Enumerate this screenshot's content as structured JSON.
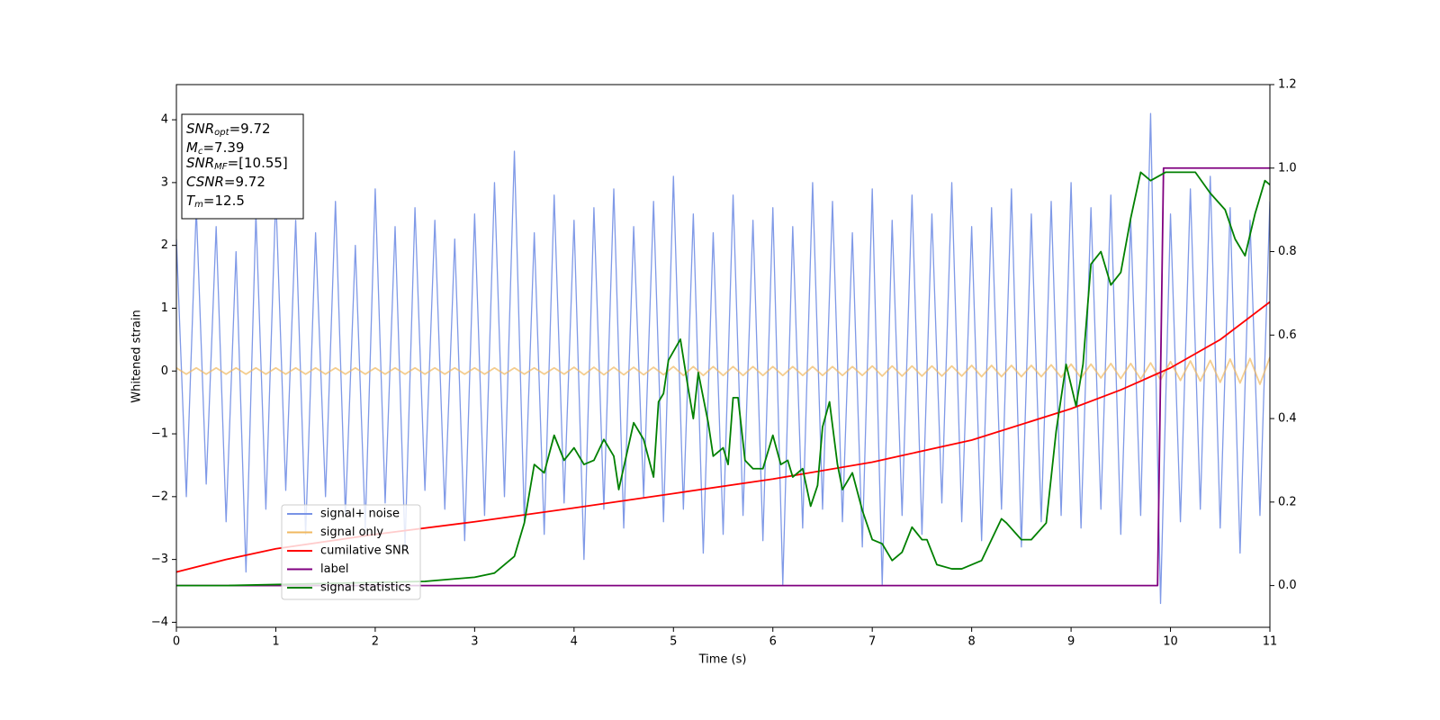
{
  "chart_data": {
    "type": "line",
    "xlabel": "Time (s)",
    "ylabel": "Whitened strain",
    "xlim": [
      0,
      11
    ],
    "xticks": [
      0,
      1,
      2,
      3,
      4,
      5,
      6,
      7,
      8,
      9,
      10,
      11
    ],
    "ylim": [
      -4.08,
      4.56
    ],
    "yticks": [
      {
        "value": -4,
        "label": "−4"
      },
      {
        "value": -3,
        "label": "−3"
      },
      {
        "value": -2,
        "label": "−2"
      },
      {
        "value": -1,
        "label": "−1"
      },
      0,
      1,
      2,
      3,
      4
    ],
    "y2lim": [
      -0.1,
      1.2
    ],
    "y2ticks": [
      {
        "value": 0,
        "label": "0.0"
      },
      0.2,
      0.4,
      0.6,
      0.8,
      {
        "value": 1,
        "label": "1.0"
      },
      1.2
    ],
    "legend": "lower left",
    "annotations": [
      {
        "symbol": "SNR",
        "subscript": "opt",
        "text": "=9.72"
      },
      {
        "symbol": "M",
        "subscript": "c",
        "text": "=7.39"
      },
      {
        "symbol": "SNR",
        "subscript": "MF",
        "text": "=[10.55]"
      },
      {
        "symbol": "CSNR",
        "text": "=9.72"
      },
      {
        "symbol": "T",
        "subscript": "m",
        "text": "=12.5"
      }
    ],
    "x": [
      0,
      0.1,
      0.2,
      0.3,
      0.4,
      0.5,
      0.6,
      0.7,
      0.8,
      0.9,
      1,
      1.1,
      1.2,
      1.3,
      1.4,
      1.5,
      1.6,
      1.7,
      1.8,
      1.9,
      2,
      2.1,
      2.2,
      2.3,
      2.4,
      2.5,
      2.6,
      2.7,
      2.8,
      2.9,
      3,
      3.1,
      3.2,
      3.3,
      3.4,
      3.5,
      3.6,
      3.7,
      3.8,
      3.9,
      4,
      4.1,
      4.2,
      4.3,
      4.4,
      4.5,
      4.6,
      4.7,
      4.8,
      4.9,
      5,
      5.1,
      5.2,
      5.3,
      5.4,
      5.5,
      5.6,
      5.7,
      5.8,
      5.9,
      6,
      6.1,
      6.2,
      6.3,
      6.4,
      6.5,
      6.6,
      6.7,
      6.8,
      6.9,
      7,
      7.1,
      7.2,
      7.3,
      7.4,
      7.5,
      7.6,
      7.7,
      7.8,
      7.9,
      8,
      8.1,
      8.2,
      8.3,
      8.4,
      8.5,
      8.6,
      8.7,
      8.8,
      8.9,
      9,
      9.1,
      9.2,
      9.3,
      9.4,
      9.5,
      9.6,
      9.7,
      9.8,
      9.9,
      10,
      10.1,
      10.2,
      10.3,
      10.4,
      10.5,
      10.6,
      10.7,
      10.8,
      10.9,
      11
    ],
    "series": [
      {
        "name": "signal+ noise",
        "color": "#7893e6",
        "values": [
          2.1,
          -2.0,
          2.6,
          -1.8,
          2.3,
          -2.4,
          1.9,
          -3.2,
          2.5,
          -2.2,
          2.8,
          -1.9,
          2.4,
          -2.6,
          2.2,
          -2.0,
          2.7,
          -2.3,
          2.0,
          -2.5,
          2.9,
          -2.1,
          2.3,
          -2.8,
          2.6,
          -1.9,
          2.4,
          -2.2,
          2.1,
          -2.7,
          2.5,
          -2.3,
          3.0,
          -2.0,
          3.5,
          -2.4,
          2.2,
          -2.6,
          2.8,
          -2.1,
          2.4,
          -3.0,
          2.6,
          -2.2,
          2.9,
          -2.5,
          2.3,
          -2.0,
          2.7,
          -2.4,
          3.1,
          -2.2,
          2.5,
          -2.9,
          2.2,
          -2.6,
          2.8,
          -2.3,
          2.4,
          -2.7,
          2.6,
          -3.4,
          2.3,
          -2.5,
          3.0,
          -2.2,
          2.7,
          -2.4,
          2.2,
          -2.8,
          2.9,
          -3.4,
          2.4,
          -2.3,
          2.8,
          -2.6,
          2.5,
          -2.1,
          3.0,
          -2.4,
          2.3,
          -2.7,
          2.6,
          -2.2,
          2.9,
          -2.8,
          2.5,
          -2.4,
          2.7,
          -2.3,
          3.0,
          -2.5,
          2.6,
          -2.2,
          2.8,
          -2.6,
          2.4,
          -2.3,
          4.1,
          -3.7,
          2.5,
          -2.4,
          2.9,
          -2.2,
          3.1,
          -2.5,
          2.6,
          -2.9,
          2.4,
          -2.3,
          2.7
        ]
      },
      {
        "name": "signal only",
        "color": "#f0b860",
        "values": [
          0.05,
          -0.05,
          0.05,
          -0.05,
          0.05,
          -0.05,
          0.05,
          -0.05,
          0.05,
          -0.05,
          0.05,
          -0.05,
          0.05,
          -0.05,
          0.05,
          -0.05,
          0.05,
          -0.05,
          0.05,
          -0.05,
          0.05,
          -0.05,
          0.05,
          -0.05,
          0.05,
          -0.05,
          0.05,
          -0.05,
          0.05,
          -0.05,
          0.05,
          -0.05,
          0.05,
          -0.05,
          0.05,
          -0.05,
          0.05,
          -0.05,
          0.05,
          -0.05,
          0.06,
          -0.06,
          0.06,
          -0.06,
          0.06,
          -0.06,
          0.06,
          -0.06,
          0.06,
          -0.06,
          0.07,
          -0.07,
          0.07,
          -0.07,
          0.07,
          -0.07,
          0.07,
          -0.07,
          0.07,
          -0.07,
          0.07,
          -0.07,
          0.07,
          -0.07,
          0.07,
          -0.07,
          0.07,
          -0.07,
          0.07,
          -0.07,
          0.08,
          -0.08,
          0.08,
          -0.08,
          0.08,
          -0.08,
          0.08,
          -0.08,
          0.08,
          -0.08,
          0.09,
          -0.09,
          0.09,
          -0.09,
          0.09,
          -0.09,
          0.09,
          -0.09,
          0.1,
          -0.1,
          0.11,
          -0.11,
          0.11,
          -0.11,
          0.12,
          -0.12,
          0.12,
          -0.13,
          0.13,
          -0.14,
          0.15,
          -0.15,
          0.16,
          -0.16,
          0.17,
          -0.18,
          0.19,
          -0.19,
          0.2,
          -0.21,
          0.22
        ]
      },
      {
        "name": "cumilative SNR",
        "color": "#ff0000",
        "x": [
          0,
          0.5,
          1,
          2,
          3,
          4,
          5,
          6,
          7,
          8,
          9,
          9.5,
          10,
          10.5,
          11
        ],
        "values": [
          -3.2,
          -3.0,
          -2.83,
          -2.6,
          -2.4,
          -2.18,
          -1.95,
          -1.72,
          -1.45,
          -1.1,
          -0.6,
          -0.3,
          0.05,
          0.5,
          1.1
        ]
      },
      {
        "name": "label",
        "color": "#800080",
        "axis": "y2",
        "x": [
          0,
          9.87,
          9.93,
          11
        ],
        "values": [
          0,
          0,
          1,
          1
        ]
      },
      {
        "name": "signal statistics",
        "color": "#008000",
        "axis": "y2",
        "x": [
          0,
          0.5,
          2.5,
          3.0,
          3.2,
          3.4,
          3.5,
          3.6,
          3.7,
          3.8,
          3.9,
          4.0,
          4.1,
          4.2,
          4.3,
          4.35,
          4.4,
          4.45,
          4.6,
          4.7,
          4.8,
          4.85,
          4.9,
          4.95,
          5.07,
          5.15,
          5.2,
          5.25,
          5.35,
          5.4,
          5.5,
          5.55,
          5.6,
          5.65,
          5.72,
          5.8,
          5.9,
          6.0,
          6.08,
          6.15,
          6.2,
          6.3,
          6.38,
          6.45,
          6.5,
          6.57,
          6.65,
          6.7,
          6.8,
          6.9,
          7.0,
          7.1,
          7.2,
          7.3,
          7.4,
          7.5,
          7.55,
          7.65,
          7.8,
          7.9,
          8.0,
          8.1,
          8.3,
          8.35,
          8.5,
          8.6,
          8.75,
          8.85,
          8.95,
          9.05,
          9.12,
          9.2,
          9.3,
          9.4,
          9.5,
          9.6,
          9.7,
          9.8,
          9.95,
          10.1,
          10.25,
          10.4,
          10.55,
          10.65,
          10.75,
          10.85,
          10.95,
          11.0
        ],
        "values": [
          0,
          0,
          0.01,
          0.02,
          0.03,
          0.07,
          0.15,
          0.29,
          0.27,
          0.36,
          0.3,
          0.33,
          0.29,
          0.3,
          0.35,
          0.33,
          0.31,
          0.23,
          0.39,
          0.35,
          0.26,
          0.44,
          0.46,
          0.54,
          0.59,
          0.47,
          0.4,
          0.51,
          0.39,
          0.31,
          0.33,
          0.29,
          0.45,
          0.45,
          0.3,
          0.28,
          0.28,
          0.36,
          0.29,
          0.3,
          0.26,
          0.28,
          0.19,
          0.24,
          0.38,
          0.44,
          0.29,
          0.23,
          0.27,
          0.18,
          0.11,
          0.1,
          0.06,
          0.08,
          0.14,
          0.11,
          0.11,
          0.05,
          0.04,
          0.04,
          0.05,
          0.06,
          0.16,
          0.15,
          0.11,
          0.11,
          0.15,
          0.37,
          0.53,
          0.43,
          0.53,
          0.77,
          0.8,
          0.72,
          0.75,
          0.88,
          0.99,
          0.97,
          0.99,
          0.99,
          0.99,
          0.94,
          0.9,
          0.83,
          0.79,
          0.89,
          0.97,
          0.96
        ]
      }
    ]
  }
}
